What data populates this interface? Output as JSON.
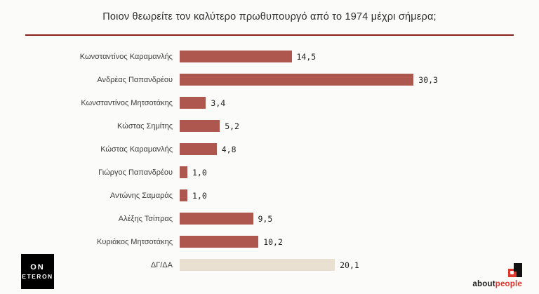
{
  "header": {
    "title": "Ποιον θεωρείτε τον καλύτερο πρωθυπουργό από το 1974 μέχρι σήμερα;",
    "divider_color": "#8b1d1b"
  },
  "chart_data": {
    "type": "bar",
    "orientation": "horizontal",
    "title": "Ποιον θεωρείτε τον καλύτερο πρωθυπουργό από το 1974 μέχρι σήμερα;",
    "categories": [
      "Κωνσταντίνος Καραμανλής",
      "Ανδρέας Παπανδρέου",
      "Κωνσταντίνος Μητσοτάκης",
      "Κώστας Σημίτης",
      "Κώστας Καραμανλής",
      "Γιώργος Παπανδρέου",
      "Αντώνης Σαμαράς",
      "Αλέξης Τσίπρας",
      "Κυριάκος Μητσοτάκης",
      "ΔΓ/ΔΑ"
    ],
    "values": [
      14.5,
      30.3,
      3.4,
      5.2,
      4.8,
      1.0,
      1.0,
      9.5,
      10.2,
      20.1
    ],
    "value_labels": [
      "14,5",
      "30,3",
      "3,4",
      "5,2",
      "4,8",
      "1,0",
      "1,0",
      "9,5",
      "10,2",
      "20,1"
    ],
    "bar_colors": [
      "#ad574e",
      "#ad574e",
      "#ad574e",
      "#ad574e",
      "#ad574e",
      "#ad574e",
      "#ad574e",
      "#ad574e",
      "#ad574e",
      "#e9e0d2"
    ],
    "xlim": [
      0,
      42
    ],
    "xlabel": "",
    "ylabel": "",
    "grid": false,
    "legend": "none"
  },
  "footer": {
    "eteron": {
      "line1": "ON",
      "line2": "ETERON"
    },
    "aboutpeople": {
      "part1": "about",
      "part2": "people",
      "accent": "#e0372c"
    }
  }
}
